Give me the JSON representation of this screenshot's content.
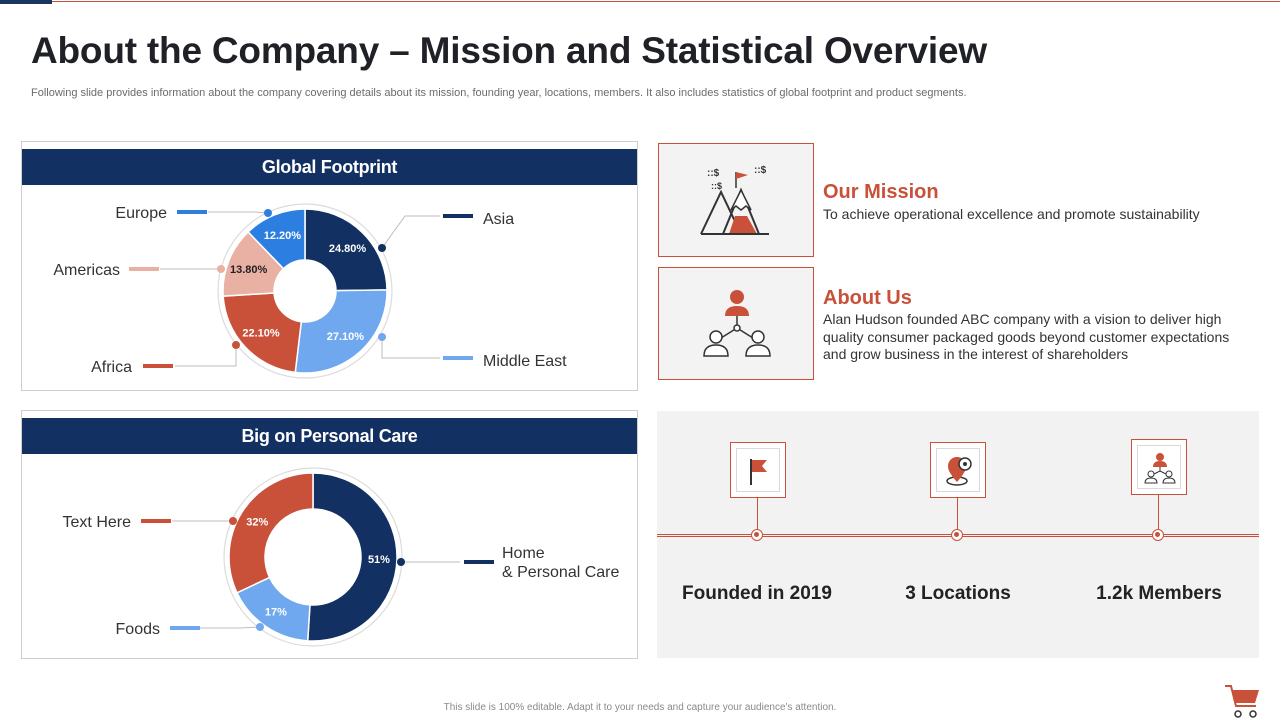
{
  "header": {
    "title": "About the Company – Mission and Statistical Overview",
    "subtitle": "Following slide provides information about the company covering details about its mission, founding year, locations, members. It also includes statistics of global footprint and product segments."
  },
  "colors": {
    "navy": "#123061",
    "accent": "#c9513a",
    "light_blue": "#6fa8ee",
    "blue": "#2c7fe0",
    "pink": "#e8b1a3",
    "gray_bg": "#f2f2f2"
  },
  "global_panel": {
    "title": "Global Footprint"
  },
  "personal_panel": {
    "title": "Big on Personal Care"
  },
  "chart_data": [
    {
      "type": "pie",
      "title": "Global Footprint",
      "categories": [
        "Asia",
        "Middle East",
        "Africa",
        "Americas",
        "Europe"
      ],
      "values": [
        24.8,
        27.1,
        22.1,
        13.8,
        12.2
      ],
      "data_labels": [
        "24.80%",
        "27.10%",
        "22.10%",
        "13.80%",
        "12.20%"
      ],
      "colors": [
        "#123061",
        "#6fa8ee",
        "#c9513a",
        "#e8b1a3",
        "#2c7fe0"
      ]
    },
    {
      "type": "pie",
      "title": "Big on Personal Care",
      "categories": [
        "Home & Personal Care",
        "Foods",
        "Text Here"
      ],
      "legend_lines": [
        [
          "Home",
          "& Personal Care"
        ],
        [
          "Foods"
        ],
        [
          "Text  Here"
        ]
      ],
      "values": [
        51,
        17,
        32
      ],
      "data_labels": [
        "51%",
        "17%",
        "32%"
      ],
      "colors": [
        "#123061",
        "#6fa8ee",
        "#c9513a"
      ]
    }
  ],
  "mission": {
    "title": "Our Mission",
    "text": "To achieve operational excellence and promote sustainability",
    "icon": "mountain-flag-icon"
  },
  "about": {
    "title": "About Us",
    "text": "Alan Hudson founded ABC company with a vision to deliver high quality consumer packaged goods beyond customer expectations and grow business in the interest of shareholders",
    "icon": "team-network-icon"
  },
  "stats": [
    {
      "label": "Founded in 2019",
      "icon": "flag-icon"
    },
    {
      "label": "3 Locations",
      "icon": "location-pin-icon"
    },
    {
      "label": "1.2k Members",
      "icon": "team-icon"
    }
  ],
  "footer": {
    "text": "This slide is 100% editable. Adapt it to your needs and capture your audience's attention."
  }
}
